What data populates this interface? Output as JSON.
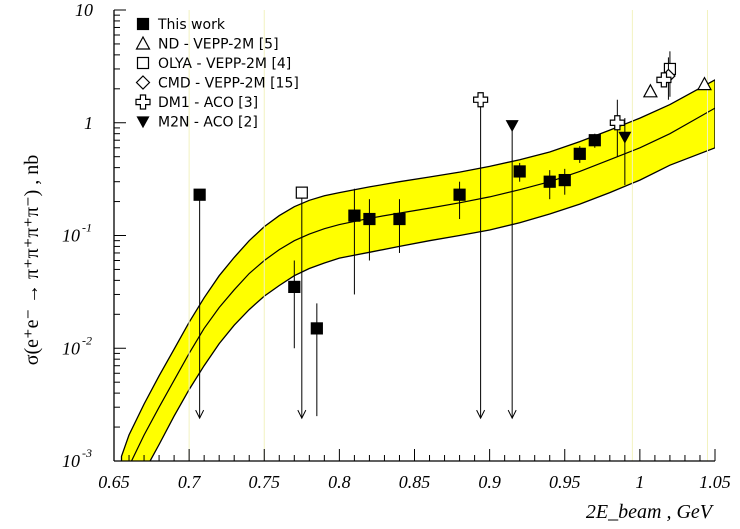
{
  "chart_data": {
    "type": "scatter",
    "xlabel": "2E_beam , GeV",
    "ylabel": "σ(e⁺e⁻ → π⁺π⁺π⁺π⁻) , nb",
    "xlim": [
      0.65,
      1.05
    ],
    "ylim": [
      0.001,
      10
    ],
    "yscale": "log",
    "x_ticks": [
      "0.65",
      "0.7",
      "0.75",
      "0.8",
      "0.85",
      "0.9",
      "0.95",
      "1",
      "1.05"
    ],
    "y_ticks": [
      {
        "value": 0.001,
        "base": "10",
        "exp": "-3"
      },
      {
        "value": 0.01,
        "base": "10",
        "exp": "-2"
      },
      {
        "value": 0.1,
        "base": "10",
        "exp": "-1"
      },
      {
        "value": 1,
        "base": "1",
        "exp": ""
      },
      {
        "value": 10,
        "base": "10",
        "exp": ""
      }
    ],
    "band_color": "#ffff00",
    "band": {
      "x": [
        0.655,
        0.66,
        0.67,
        0.68,
        0.69,
        0.7,
        0.71,
        0.72,
        0.73,
        0.74,
        0.75,
        0.76,
        0.77,
        0.78,
        0.79,
        0.8,
        0.82,
        0.84,
        0.86,
        0.88,
        0.9,
        0.92,
        0.94,
        0.96,
        0.98,
        1.0,
        1.02,
        1.05
      ],
      "central": [
        0.00055,
        0.0009,
        0.0017,
        0.003,
        0.0052,
        0.009,
        0.015,
        0.023,
        0.033,
        0.046,
        0.06,
        0.075,
        0.09,
        0.103,
        0.115,
        0.125,
        0.142,
        0.158,
        0.175,
        0.195,
        0.22,
        0.255,
        0.3,
        0.37,
        0.47,
        0.6,
        0.8,
        1.35
      ],
      "upper": [
        0.0011,
        0.0017,
        0.0032,
        0.0057,
        0.0098,
        0.017,
        0.028,
        0.044,
        0.064,
        0.09,
        0.12,
        0.15,
        0.18,
        0.205,
        0.225,
        0.24,
        0.27,
        0.3,
        0.33,
        0.365,
        0.41,
        0.47,
        0.55,
        0.68,
        0.86,
        1.1,
        1.45,
        2.4
      ],
      "lower": [
        0.00025,
        0.0004,
        0.0008,
        0.0014,
        0.0025,
        0.0043,
        0.007,
        0.011,
        0.016,
        0.022,
        0.029,
        0.036,
        0.044,
        0.051,
        0.057,
        0.063,
        0.071,
        0.08,
        0.09,
        0.1,
        0.112,
        0.13,
        0.155,
        0.19,
        0.24,
        0.31,
        0.42,
        0.6
      ]
    },
    "series": [
      {
        "name": "This work",
        "marker": "square-filled",
        "points": [
          {
            "x": 0.77,
            "y": 0.035,
            "lo": 0.01,
            "hi": 0.06
          },
          {
            "x": 0.785,
            "y": 0.015,
            "lo": 0.0025,
            "hi": 0.025
          },
          {
            "x": 0.81,
            "y": 0.15,
            "lo": 0.03,
            "hi": 0.26
          },
          {
            "x": 0.82,
            "y": 0.14,
            "lo": 0.06,
            "hi": 0.21
          },
          {
            "x": 0.84,
            "y": 0.14,
            "lo": 0.07,
            "hi": 0.21
          },
          {
            "x": 0.88,
            "y": 0.23,
            "lo": 0.14,
            "hi": 0.3
          },
          {
            "x": 0.92,
            "y": 0.37,
            "lo": 0.3,
            "hi": 0.44
          },
          {
            "x": 0.94,
            "y": 0.3,
            "lo": 0.21,
            "hi": 0.38
          },
          {
            "x": 0.95,
            "y": 0.31,
            "lo": 0.23,
            "hi": 0.39
          },
          {
            "x": 0.96,
            "y": 0.53,
            "lo": 0.44,
            "hi": 0.62
          },
          {
            "x": 0.97,
            "y": 0.7,
            "lo": 0.6,
            "hi": 0.8
          }
        ],
        "upper_limits": [
          {
            "x": 0.707,
            "y": 0.23,
            "to": 0.0024
          }
        ]
      },
      {
        "name": "ND - VEPP-2M [5]",
        "marker": "triangle-open",
        "points": [
          {
            "x": 1.007,
            "y": 1.9
          },
          {
            "x": 1.043,
            "y": 2.2
          }
        ]
      },
      {
        "name": "OLYA - VEPP-2M [4]",
        "marker": "square-open",
        "points": [
          {
            "x": 1.02,
            "y": 3.0,
            "lo": 1.7,
            "hi": 4.3
          }
        ],
        "upper_limits": [
          {
            "x": 0.775,
            "y": 0.24,
            "to": 0.0024
          }
        ]
      },
      {
        "name": "CMD - VEPP-2M [15]",
        "marker": "diamond-open",
        "points": [
          {
            "x": 1.019,
            "y": 2.6,
            "lo": 1.6,
            "hi": 3.8
          }
        ]
      },
      {
        "name": "DM1 - ACO [3]",
        "marker": "cross-open",
        "points": [
          {
            "x": 0.985,
            "y": 1.0,
            "lo": 0.5,
            "hi": 1.6
          },
          {
            "x": 1.016,
            "y": 2.4
          }
        ],
        "upper_limits": [
          {
            "x": 0.894,
            "y": 1.6,
            "to": 0.0024
          }
        ]
      },
      {
        "name": "M2N - ACO [2]",
        "marker": "triangle-down-filled",
        "points": [
          {
            "x": 0.99,
            "y": 0.75,
            "lo": 0.28,
            "hi": 1.1
          }
        ],
        "upper_limits": [
          {
            "x": 0.915,
            "y": 0.95,
            "to": 0.0024
          }
        ]
      }
    ]
  }
}
